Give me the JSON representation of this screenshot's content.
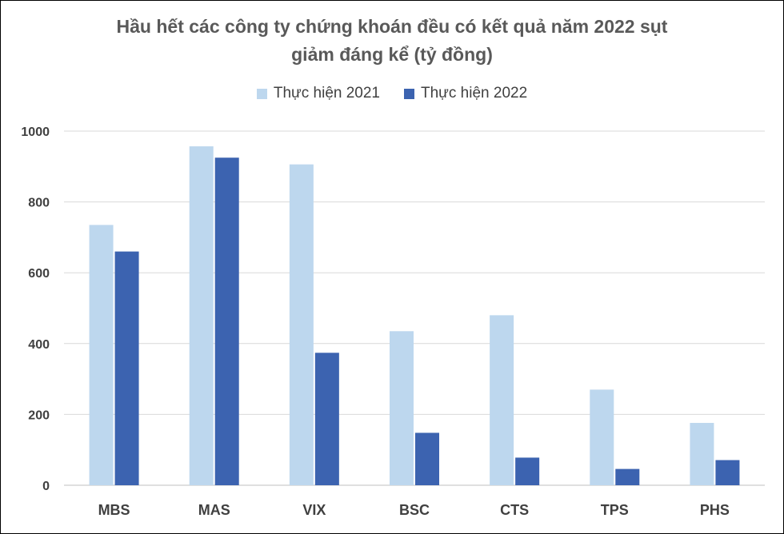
{
  "chart_data": {
    "type": "bar",
    "title_line1": "Hầu hết các công ty chứng khoán đều có kết quả năm 2022 sụt",
    "title_line2": "giảm đáng kể (tỷ đồng)",
    "categories": [
      "MBS",
      "MAS",
      "VIX",
      "BSC",
      "CTS",
      "TPS",
      "PHS"
    ],
    "series": [
      {
        "name": "Thực hiện 2021",
        "color": "#bdd7ee",
        "values": [
          735,
          957,
          906,
          435,
          480,
          270,
          176
        ]
      },
      {
        "name": "Thực hiện 2022",
        "color": "#3c63b0",
        "values": [
          660,
          925,
          374,
          148,
          78,
          46,
          71
        ]
      }
    ],
    "ylim": [
      0,
      1000
    ],
    "yticks": [
      "0",
      "200",
      "400",
      "600",
      "800",
      "1000"
    ],
    "grid": true,
    "legend_position": "top"
  }
}
